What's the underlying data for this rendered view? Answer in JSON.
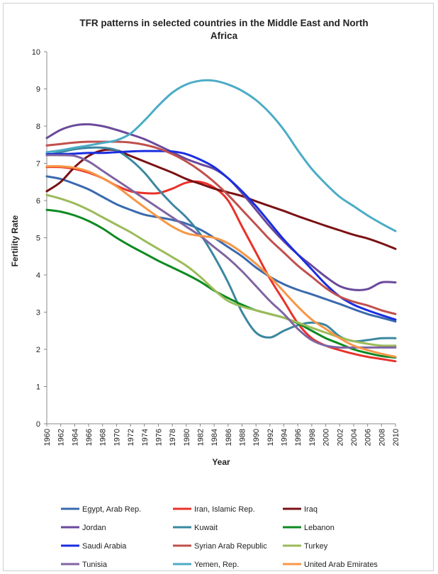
{
  "chart_data": {
    "type": "line",
    "title_lines": [
      "TFR patterns in selected countries in the Middle East and North",
      "Africa"
    ],
    "xlabel": "Year",
    "ylabel": "Fertility Rate",
    "xlim": [
      1960,
      2010
    ],
    "ylim": [
      0,
      10
    ],
    "yticks": [
      0,
      1,
      2,
      3,
      4,
      5,
      6,
      7,
      8,
      9,
      10
    ],
    "xticks": [
      1960,
      1962,
      1964,
      1966,
      1968,
      1970,
      1972,
      1974,
      1976,
      1978,
      1980,
      1982,
      1984,
      1986,
      1988,
      1990,
      1992,
      1994,
      1996,
      1998,
      2000,
      2002,
      2004,
      2006,
      2008,
      2010
    ],
    "grid": false,
    "legend_position": "bottom",
    "x": [
      1960,
      1962,
      1964,
      1966,
      1968,
      1970,
      1972,
      1974,
      1976,
      1978,
      1980,
      1982,
      1984,
      1986,
      1988,
      1990,
      1992,
      1994,
      1996,
      1998,
      2000,
      2002,
      2004,
      2006,
      2008,
      2010
    ],
    "series": [
      {
        "name": "Egypt, Arab Rep.",
        "color": "#3a6aae",
        "values": [
          6.65,
          6.58,
          6.45,
          6.3,
          6.1,
          5.9,
          5.75,
          5.62,
          5.55,
          5.48,
          5.38,
          5.22,
          5.0,
          4.75,
          4.5,
          4.2,
          3.95,
          3.75,
          3.6,
          3.48,
          3.35,
          3.22,
          3.08,
          2.95,
          2.85,
          2.75
        ]
      },
      {
        "name": "Iran, Islamic Rep.",
        "color": "#e8322a",
        "values": [
          6.9,
          6.9,
          6.85,
          6.75,
          6.6,
          6.4,
          6.25,
          6.2,
          6.2,
          6.32,
          6.48,
          6.5,
          6.35,
          6.0,
          5.3,
          4.6,
          3.9,
          3.3,
          2.7,
          2.3,
          2.1,
          1.98,
          1.88,
          1.8,
          1.74,
          1.68
        ]
      },
      {
        "name": "Iraq",
        "color": "#7a1114",
        "values": [
          6.25,
          6.5,
          6.9,
          7.2,
          7.35,
          7.35,
          7.2,
          7.05,
          6.9,
          6.75,
          6.58,
          6.45,
          6.32,
          6.22,
          6.12,
          5.98,
          5.85,
          5.72,
          5.58,
          5.45,
          5.32,
          5.2,
          5.08,
          4.98,
          4.85,
          4.7
        ]
      },
      {
        "name": "Jordan",
        "color": "#6a4a9a",
        "values": [
          7.68,
          7.9,
          8.02,
          8.05,
          8.0,
          7.9,
          7.78,
          7.65,
          7.48,
          7.3,
          7.12,
          6.98,
          6.85,
          6.6,
          6.2,
          5.75,
          5.3,
          4.9,
          4.55,
          4.25,
          3.95,
          3.7,
          3.6,
          3.62,
          3.8,
          3.8
        ]
      },
      {
        "name": "Kuwait",
        "color": "#3b87a0",
        "values": [
          7.22,
          7.3,
          7.38,
          7.42,
          7.42,
          7.35,
          7.1,
          6.75,
          6.3,
          5.9,
          5.55,
          5.1,
          4.5,
          3.8,
          3.0,
          2.45,
          2.32,
          2.5,
          2.65,
          2.72,
          2.65,
          2.35,
          2.22,
          2.25,
          2.3,
          2.3
        ]
      },
      {
        "name": "Lebanon",
        "color": "#0c8a20",
        "values": [
          5.75,
          5.7,
          5.6,
          5.45,
          5.25,
          5.0,
          4.78,
          4.58,
          4.38,
          4.2,
          4.02,
          3.82,
          3.58,
          3.38,
          3.2,
          3.05,
          2.95,
          2.85,
          2.7,
          2.5,
          2.3,
          2.15,
          2.0,
          1.9,
          1.82,
          1.78
        ]
      },
      {
        "name": "Saudi Arabia",
        "color": "#1a2ee0",
        "values": [
          7.25,
          7.25,
          7.26,
          7.28,
          7.28,
          7.3,
          7.32,
          7.33,
          7.33,
          7.32,
          7.25,
          7.1,
          6.9,
          6.6,
          6.25,
          5.85,
          5.4,
          4.95,
          4.55,
          4.15,
          3.75,
          3.42,
          3.2,
          3.05,
          2.92,
          2.8
        ]
      },
      {
        "name": "Syrian Arab Republic",
        "color": "#c0504d",
        "values": [
          7.48,
          7.52,
          7.56,
          7.58,
          7.58,
          7.58,
          7.56,
          7.5,
          7.4,
          7.25,
          7.05,
          6.8,
          6.5,
          6.15,
          5.75,
          5.35,
          4.95,
          4.6,
          4.25,
          3.95,
          3.65,
          3.42,
          3.28,
          3.18,
          3.05,
          2.95
        ]
      },
      {
        "name": "Turkey",
        "color": "#9bbb59",
        "values": [
          6.15,
          6.05,
          5.92,
          5.75,
          5.55,
          5.35,
          5.15,
          4.92,
          4.7,
          4.48,
          4.25,
          3.95,
          3.6,
          3.3,
          3.15,
          3.05,
          2.95,
          2.85,
          2.72,
          2.58,
          2.45,
          2.32,
          2.22,
          2.15,
          2.1,
          2.1
        ]
      },
      {
        "name": "Tunisia",
        "color": "#8064a2",
        "values": [
          7.22,
          7.22,
          7.2,
          7.05,
          6.8,
          6.55,
          6.3,
          6.05,
          5.8,
          5.55,
          5.3,
          5.05,
          4.75,
          4.45,
          4.1,
          3.7,
          3.3,
          2.95,
          2.55,
          2.25,
          2.1,
          2.05,
          2.05,
          2.05,
          2.05,
          2.05
        ]
      },
      {
        "name": "Yemen, Rep.",
        "color": "#4bacc6",
        "values": [
          7.3,
          7.35,
          7.42,
          7.48,
          7.55,
          7.62,
          7.8,
          8.15,
          8.55,
          8.9,
          9.12,
          9.22,
          9.22,
          9.12,
          8.95,
          8.7,
          8.35,
          7.9,
          7.35,
          6.85,
          6.45,
          6.1,
          5.85,
          5.6,
          5.38,
          5.18
        ]
      },
      {
        "name": "United Arab Emirates",
        "color": "#f79646",
        "values": [
          6.92,
          6.92,
          6.88,
          6.78,
          6.6,
          6.38,
          6.1,
          5.82,
          5.55,
          5.3,
          5.12,
          5.05,
          5.0,
          4.85,
          4.6,
          4.3,
          3.95,
          3.55,
          3.15,
          2.8,
          2.55,
          2.3,
          2.1,
          1.98,
          1.88,
          1.8
        ]
      }
    ]
  }
}
